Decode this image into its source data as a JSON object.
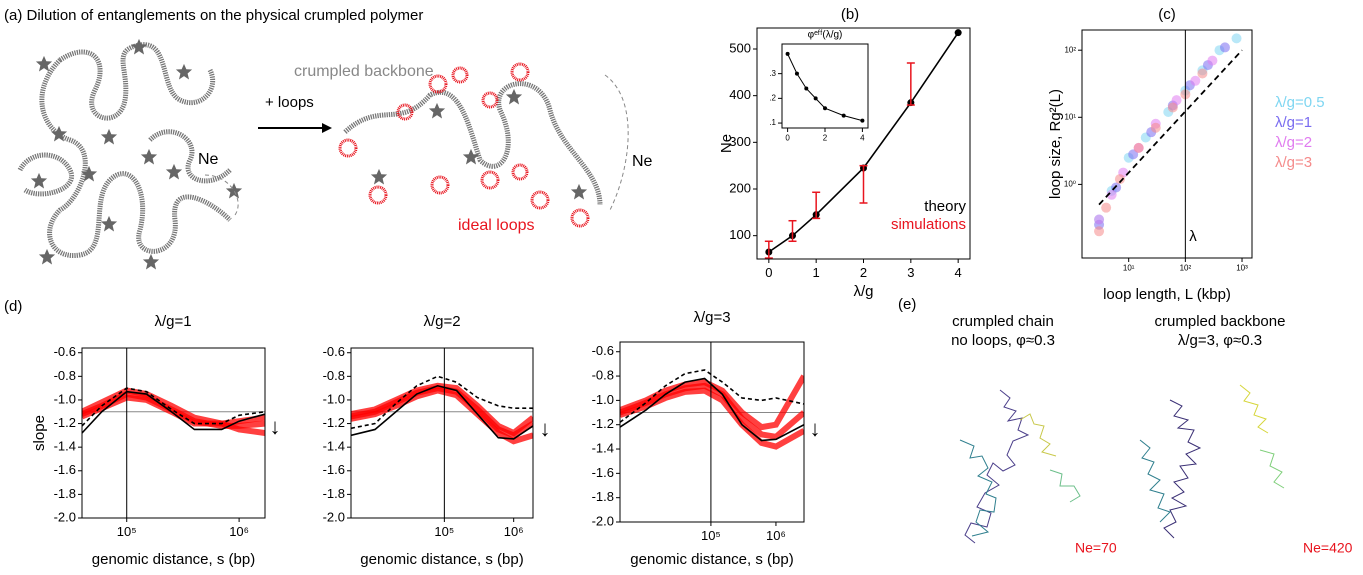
{
  "panel_a": {
    "title": "(a) Dilution of entanglements on the physical crumpled polymer",
    "ne_left": "Ne",
    "arrow": "+ loops",
    "backbone": "crumpled backbone",
    "loops": "ideal loops",
    "ne_right": "Ne"
  },
  "panel_d": "(d)",
  "panel_e": {
    "label": "(e)",
    "left_title": [
      "crumpled chain",
      "no loops, φ≈0.3"
    ],
    "right_title": [
      "crumpled backbone",
      "λ/g=3, φ≈0.3"
    ],
    "left_ne": "Ne=70",
    "right_ne": "Ne=420"
  },
  "chart_data": [
    {
      "type": "line",
      "title": "(b)",
      "xlabel": "λ/g",
      "ylabel": "Ne",
      "xlim": [
        -0.25,
        4.25
      ],
      "ylim": [
        50,
        545
      ],
      "xticks": [
        0,
        1,
        2,
        3,
        4
      ],
      "yticks": [
        100,
        200,
        300,
        400,
        500
      ],
      "series": [
        {
          "name": "theory",
          "color": "#000000",
          "x": [
            0,
            0.5,
            1,
            2,
            3,
            4
          ],
          "values": [
            65,
            100,
            145,
            245,
            385,
            535
          ],
          "markers": true
        },
        {
          "name": "simulations",
          "color": "#e8141e",
          "x": [
            0,
            0.5,
            1,
            2,
            3
          ],
          "values": [
            70,
            110,
            165,
            210,
            425
          ],
          "errors": [
            18,
            22,
            28,
            40,
            45
          ]
        }
      ]
    },
    {
      "type": "line",
      "title": "φᵉᶠᶠ(λ/g)",
      "xlim": [
        -0.3,
        4.3
      ],
      "ylim": [
        0.08,
        0.42
      ],
      "xticks": [
        0,
        2,
        4
      ],
      "yticks": [
        {
          "value": 0.1,
          "label": ".1"
        },
        {
          "value": 0.2,
          "label": ".2"
        },
        {
          "value": 0.3,
          "label": ".3"
        }
      ],
      "series": [
        {
          "color": "#000000",
          "x": [
            0,
            0.5,
            1,
            1.5,
            2,
            3,
            4
          ],
          "values": [
            0.38,
            0.3,
            0.24,
            0.2,
            0.16,
            0.13,
            0.11
          ],
          "markers": true
        }
      ]
    },
    {
      "type": "scatter",
      "title": "(c)",
      "xlabel": "loop length, L (kbp)",
      "ylabel": "loop size, Rg²(L)",
      "xlog": true,
      "ylog": true,
      "xlim": [
        1.5,
        1500
      ],
      "ylim": [
        0.08,
        200
      ],
      "xticks": [
        {
          "value": 10,
          "label": "10¹"
        },
        {
          "value": 100,
          "label": "10²"
        },
        {
          "value": 1000,
          "label": "10³"
        }
      ],
      "yticks": [
        {
          "value": 1,
          "label": "10⁰"
        },
        {
          "value": 10,
          "label": "10¹"
        },
        {
          "value": 100,
          "label": "10²"
        }
      ],
      "vline": 100,
      "annotations": [
        "λ"
      ],
      "fit": {
        "x": [
          3,
          1000
        ],
        "values": [
          0.5,
          100
        ]
      },
      "series": [
        {
          "name": "λ/g=0.5",
          "color": "#7fd6f2",
          "x": [
            3,
            5,
            10,
            20,
            50,
            100,
            200,
            400,
            800
          ],
          "values": [
            0.3,
            0.8,
            2.5,
            5,
            12,
            25,
            50,
            100,
            150
          ]
        },
        {
          "name": "λ/g=1",
          "color": "#7a6cf0",
          "x": [
            3,
            6,
            12,
            25,
            60,
            120,
            250,
            500
          ],
          "values": [
            0.25,
            0.9,
            2.8,
            6,
            15,
            30,
            60,
            110
          ]
        },
        {
          "name": "λ/g=2",
          "color": "#e07cf0",
          "x": [
            3,
            5,
            8,
            15,
            30,
            70,
            150,
            300
          ],
          "values": [
            0.3,
            0.7,
            1.5,
            3.5,
            8,
            18,
            35,
            70
          ]
        },
        {
          "name": "λ/g=3",
          "color": "#f58b8b",
          "x": [
            3,
            4,
            7,
            15,
            30,
            60,
            100,
            200
          ],
          "values": [
            0.2,
            0.45,
            1.2,
            3.5,
            7,
            14,
            22,
            45
          ]
        }
      ]
    },
    {
      "type": "line",
      "title": "λ/g=1",
      "xlabel": "genomic distance, s (bp)",
      "ylabel": "slope",
      "xlog": true,
      "xlim": [
        40000,
        1700000
      ],
      "ylim": [
        -2.0,
        -0.56
      ],
      "xticks": [
        {
          "value": 100000,
          "label": "10⁵"
        },
        {
          "value": 1000000,
          "label": "10⁶"
        }
      ],
      "yticks": [
        -0.6,
        -0.8,
        {
          "value": -1,
          "label": "-1.0"
        },
        -1.2,
        -1.4,
        -1.6,
        -1.8,
        {
          "value": -2,
          "label": "-2.0"
        }
      ],
      "hline": -1.1,
      "vline": 100000,
      "annotations": [
        "↓"
      ],
      "x": [
        40000,
        60000,
        100000,
        150000,
        250000,
        400000,
        700000,
        1000000,
        1700000
      ],
      "series": [
        {
          "color": "#ff0000",
          "values": [
            -1.12,
            -1.05,
            -0.95,
            -0.98,
            -1.08,
            -1.18,
            -1.22,
            -1.22,
            -1.2
          ]
        },
        {
          "color": "#ff0000",
          "values": [
            -1.14,
            -1.07,
            -0.98,
            -1.0,
            -1.1,
            -1.2,
            -1.2,
            -1.18,
            -1.15
          ]
        },
        {
          "color": "#ff0000",
          "values": [
            -1.1,
            -1.02,
            -0.92,
            -0.95,
            -1.05,
            -1.15,
            -1.2,
            -1.25,
            -1.28
          ]
        },
        {
          "color": "#000000",
          "dash": true,
          "values": [
            -1.22,
            -1.05,
            -0.9,
            -0.93,
            -1.08,
            -1.2,
            -1.2,
            -1.13,
            -1.1
          ]
        },
        {
          "color": "#000000",
          "values": [
            -1.28,
            -1.1,
            -0.93,
            -0.95,
            -1.1,
            -1.25,
            -1.25,
            -1.18,
            -1.12
          ]
        }
      ]
    },
    {
      "type": "line",
      "title": "λ/g=2",
      "xlabel": "genomic distance, s (bp)",
      "xlog": true,
      "xlim": [
        4500,
        1900000
      ],
      "ylim": [
        -2.0,
        -0.56
      ],
      "xticks": [
        {
          "value": 100000,
          "label": "10⁵"
        },
        {
          "value": 1000000,
          "label": "10⁶"
        }
      ],
      "yticks": [
        -0.6,
        -0.8,
        {
          "value": -1,
          "label": "-1.0"
        },
        -1.2,
        -1.4,
        -1.6,
        -1.8,
        {
          "value": -2,
          "label": "-2.0"
        }
      ],
      "hline": -1.1,
      "vline": 100000,
      "annotations": [
        "↓"
      ],
      "x": [
        4500,
        10000,
        20000,
        40000,
        80000,
        150000,
        300000,
        600000,
        1000000,
        1900000
      ],
      "series": [
        {
          "color": "#ff0000",
          "values": [
            -1.14,
            -1.1,
            -1.02,
            -0.94,
            -0.9,
            -0.93,
            -1.08,
            -1.25,
            -1.3,
            -1.2
          ]
        },
        {
          "color": "#ff0000",
          "values": [
            -1.16,
            -1.12,
            -1.05,
            -0.97,
            -0.92,
            -0.96,
            -1.12,
            -1.28,
            -1.35,
            -1.3
          ]
        },
        {
          "color": "#ff0000",
          "values": [
            -1.12,
            -1.08,
            -1.0,
            -0.92,
            -0.88,
            -0.9,
            -1.05,
            -1.22,
            -1.28,
            -1.15
          ]
        },
        {
          "color": "#000000",
          "dash": true,
          "values": [
            -1.24,
            -1.2,
            -1.03,
            -0.88,
            -0.8,
            -0.85,
            -0.98,
            -1.05,
            -1.07,
            -1.07
          ]
        },
        {
          "color": "#000000",
          "values": [
            -1.3,
            -1.25,
            -1.1,
            -0.95,
            -0.88,
            -0.92,
            -1.12,
            -1.32,
            -1.33,
            -1.22
          ]
        }
      ]
    },
    {
      "type": "line",
      "title": "λ/g=3",
      "xlabel": "genomic distance, s (bp)",
      "xlog": true,
      "xlim": [
        4000,
        2700000
      ],
      "ylim": [
        -2.0,
        -0.52
      ],
      "xticks": [
        {
          "value": 100000,
          "label": "10⁵"
        },
        {
          "value": 1000000,
          "label": "10⁶"
        }
      ],
      "yticks": [
        -0.6,
        -0.8,
        {
          "value": -1,
          "label": "-1.0"
        },
        -1.2,
        -1.4,
        -1.6,
        -1.8,
        {
          "value": -2,
          "label": "-2.0"
        }
      ],
      "hline": -1.1,
      "vline": 100000,
      "annotations": [
        "↓"
      ],
      "x": [
        4000,
        10000,
        20000,
        40000,
        80000,
        150000,
        300000,
        600000,
        1000000,
        2700000
      ],
      "series": [
        {
          "color": "#ff0000",
          "values": [
            -1.1,
            -1.02,
            -0.95,
            -0.9,
            -0.88,
            -0.95,
            -1.15,
            -1.28,
            -1.3,
            -1.1
          ]
        },
        {
          "color": "#ff0000",
          "values": [
            -1.12,
            -1.05,
            -0.98,
            -0.93,
            -0.92,
            -1.0,
            -1.2,
            -1.35,
            -1.38,
            -1.25
          ]
        },
        {
          "color": "#ff0000",
          "values": [
            -1.08,
            -1.0,
            -0.92,
            -0.87,
            -0.85,
            -0.92,
            -1.1,
            -1.22,
            -1.2,
            -0.8
          ]
        },
        {
          "color": "#000000",
          "dash": true,
          "values": [
            -1.18,
            -1.02,
            -0.88,
            -0.78,
            -0.75,
            -0.85,
            -0.98,
            -1.0,
            -0.98,
            -1.03
          ]
        },
        {
          "color": "#000000",
          "values": [
            -1.22,
            -1.08,
            -0.95,
            -0.85,
            -0.82,
            -0.95,
            -1.2,
            -1.33,
            -1.32,
            -1.2
          ]
        }
      ]
    }
  ]
}
